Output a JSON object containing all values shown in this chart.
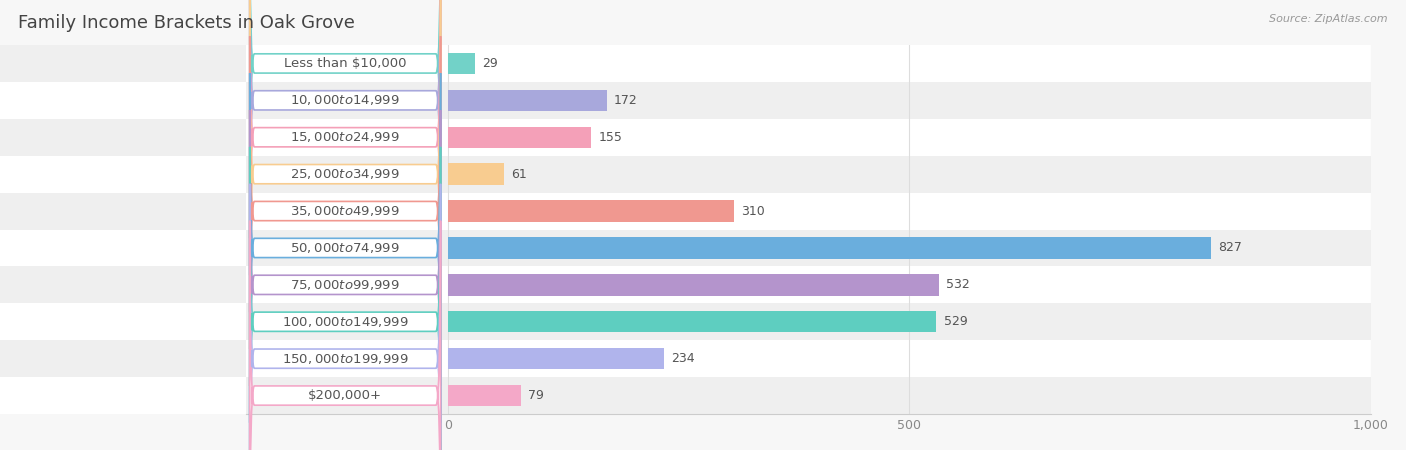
{
  "title": "Family Income Brackets in Oak Grove",
  "source": "Source: ZipAtlas.com",
  "categories": [
    "Less than $10,000",
    "$10,000 to $14,999",
    "$15,000 to $24,999",
    "$25,000 to $34,999",
    "$35,000 to $49,999",
    "$50,000 to $74,999",
    "$75,000 to $99,999",
    "$100,000 to $149,999",
    "$150,000 to $199,999",
    "$200,000+"
  ],
  "values": [
    29,
    172,
    155,
    61,
    310,
    827,
    532,
    529,
    234,
    79
  ],
  "bar_colors": [
    "#72d2c8",
    "#a8a8dc",
    "#f4a0b8",
    "#f8cc90",
    "#f09890",
    "#6aaedd",
    "#b494cc",
    "#5ecec0",
    "#b0b4ec",
    "#f4a8c8"
  ],
  "bg_color": "#f7f7f7",
  "row_colors": [
    "#ffffff",
    "#efefef"
  ],
  "xlim": [
    0,
    1000
  ],
  "xticks": [
    0,
    500,
    1000
  ],
  "title_fontsize": 13,
  "label_fontsize": 9.5,
  "value_fontsize": 9,
  "bar_height": 0.58,
  "title_color": "#444444",
  "label_color": "#555555",
  "value_color": "#555555",
  "source_color": "#999999",
  "spine_color": "#cccccc",
  "grid_color": "#dddddd"
}
